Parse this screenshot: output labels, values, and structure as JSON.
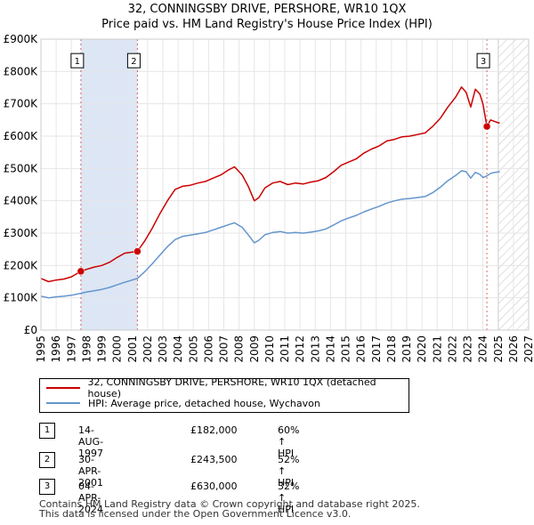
{
  "title_line1": "32, CONNINGSBY DRIVE, PERSHORE, WR10 1QX",
  "title_line2": "Price paid vs. HM Land Registry's House Price Index (HPI)",
  "chart_data": {
    "type": "line",
    "xlim": [
      1995,
      2027
    ],
    "ylim": [
      0,
      900000
    ],
    "x_ticks": [
      "1995",
      "1996",
      "1997",
      "1998",
      "1999",
      "2000",
      "2001",
      "2002",
      "2003",
      "2004",
      "2005",
      "2006",
      "2007",
      "2008",
      "2009",
      "2010",
      "2011",
      "2012",
      "2013",
      "2014",
      "2015",
      "2016",
      "2017",
      "2018",
      "2019",
      "2020",
      "2021",
      "2022",
      "2023",
      "2024",
      "2025",
      "2026",
      "2027"
    ],
    "y_ticks": [
      {
        "value": 0,
        "label": "£0"
      },
      {
        "value": 100000,
        "label": "£100K"
      },
      {
        "value": 200000,
        "label": "£200K"
      },
      {
        "value": 300000,
        "label": "£300K"
      },
      {
        "value": 400000,
        "label": "£400K"
      },
      {
        "value": 500000,
        "label": "£500K"
      },
      {
        "value": 600000,
        "label": "£600K"
      },
      {
        "value": 700000,
        "label": "£700K"
      },
      {
        "value": 800000,
        "label": "£800K"
      },
      {
        "value": 900000,
        "label": "£900K"
      }
    ],
    "shaded_periods": [
      [
        1997.62,
        2001.33
      ]
    ],
    "forecast_start": 2025.0,
    "series": [
      {
        "name": "32, CONNINGSBY DRIVE, PERSHORE, WR10 1QX (detached house)",
        "color": "#cc0000",
        "points": [
          [
            1995.0,
            160000
          ],
          [
            1995.5,
            150000
          ],
          [
            1996.0,
            155000
          ],
          [
            1996.5,
            158000
          ],
          [
            1997.0,
            165000
          ],
          [
            1997.62,
            182000
          ],
          [
            1998.0,
            188000
          ],
          [
            1998.5,
            195000
          ],
          [
            1999.0,
            200000
          ],
          [
            1999.5,
            210000
          ],
          [
            2000.0,
            225000
          ],
          [
            2000.5,
            238000
          ],
          [
            2001.33,
            243500
          ],
          [
            2001.8,
            275000
          ],
          [
            2002.3,
            315000
          ],
          [
            2002.8,
            360000
          ],
          [
            2003.3,
            400000
          ],
          [
            2003.8,
            435000
          ],
          [
            2004.3,
            445000
          ],
          [
            2004.8,
            448000
          ],
          [
            2005.3,
            455000
          ],
          [
            2005.8,
            460000
          ],
          [
            2006.3,
            470000
          ],
          [
            2006.8,
            480000
          ],
          [
            2007.3,
            495000
          ],
          [
            2007.7,
            505000
          ],
          [
            2008.2,
            480000
          ],
          [
            2008.6,
            445000
          ],
          [
            2009.0,
            400000
          ],
          [
            2009.3,
            410000
          ],
          [
            2009.7,
            440000
          ],
          [
            2010.2,
            455000
          ],
          [
            2010.7,
            460000
          ],
          [
            2011.2,
            450000
          ],
          [
            2011.7,
            455000
          ],
          [
            2012.2,
            452000
          ],
          [
            2012.7,
            458000
          ],
          [
            2013.2,
            462000
          ],
          [
            2013.7,
            472000
          ],
          [
            2014.2,
            490000
          ],
          [
            2014.7,
            510000
          ],
          [
            2015.2,
            520000
          ],
          [
            2015.7,
            530000
          ],
          [
            2016.2,
            548000
          ],
          [
            2016.7,
            560000
          ],
          [
            2017.2,
            570000
          ],
          [
            2017.7,
            585000
          ],
          [
            2018.2,
            590000
          ],
          [
            2018.7,
            598000
          ],
          [
            2019.2,
            600000
          ],
          [
            2019.7,
            605000
          ],
          [
            2020.2,
            610000
          ],
          [
            2020.7,
            630000
          ],
          [
            2021.2,
            655000
          ],
          [
            2021.7,
            690000
          ],
          [
            2022.2,
            720000
          ],
          [
            2022.6,
            752000
          ],
          [
            2022.9,
            735000
          ],
          [
            2023.2,
            690000
          ],
          [
            2023.5,
            745000
          ],
          [
            2023.8,
            730000
          ],
          [
            2024.0,
            700000
          ],
          [
            2024.26,
            630000
          ],
          [
            2024.5,
            650000
          ],
          [
            2024.8,
            645000
          ],
          [
            2025.1,
            640000
          ]
        ]
      },
      {
        "name": "HPI: Average price, detached house, Wychavon",
        "color": "#6495cd",
        "points": [
          [
            1995.0,
            105000
          ],
          [
            1995.5,
            100000
          ],
          [
            1996.0,
            103000
          ],
          [
            1996.5,
            105000
          ],
          [
            1997.0,
            108000
          ],
          [
            1997.62,
            114000
          ],
          [
            1998.0,
            118000
          ],
          [
            1998.5,
            122000
          ],
          [
            1999.0,
            126000
          ],
          [
            1999.5,
            132000
          ],
          [
            2000.0,
            140000
          ],
          [
            2000.5,
            148000
          ],
          [
            2001.33,
            160000
          ],
          [
            2001.8,
            180000
          ],
          [
            2002.3,
            205000
          ],
          [
            2002.8,
            232000
          ],
          [
            2003.3,
            258000
          ],
          [
            2003.8,
            280000
          ],
          [
            2004.3,
            290000
          ],
          [
            2004.8,
            294000
          ],
          [
            2005.3,
            298000
          ],
          [
            2005.8,
            302000
          ],
          [
            2006.3,
            310000
          ],
          [
            2006.8,
            318000
          ],
          [
            2007.3,
            326000
          ],
          [
            2007.7,
            332000
          ],
          [
            2008.2,
            318000
          ],
          [
            2008.6,
            295000
          ],
          [
            2009.0,
            270000
          ],
          [
            2009.3,
            278000
          ],
          [
            2009.7,
            295000
          ],
          [
            2010.2,
            302000
          ],
          [
            2010.7,
            305000
          ],
          [
            2011.2,
            300000
          ],
          [
            2011.7,
            302000
          ],
          [
            2012.2,
            300000
          ],
          [
            2012.7,
            303000
          ],
          [
            2013.2,
            307000
          ],
          [
            2013.7,
            313000
          ],
          [
            2014.2,
            325000
          ],
          [
            2014.7,
            338000
          ],
          [
            2015.2,
            347000
          ],
          [
            2015.7,
            355000
          ],
          [
            2016.2,
            366000
          ],
          [
            2016.7,
            375000
          ],
          [
            2017.2,
            383000
          ],
          [
            2017.7,
            393000
          ],
          [
            2018.2,
            400000
          ],
          [
            2018.7,
            405000
          ],
          [
            2019.2,
            407000
          ],
          [
            2019.7,
            410000
          ],
          [
            2020.2,
            413000
          ],
          [
            2020.7,
            425000
          ],
          [
            2021.2,
            442000
          ],
          [
            2021.7,
            462000
          ],
          [
            2022.2,
            478000
          ],
          [
            2022.6,
            493000
          ],
          [
            2022.9,
            490000
          ],
          [
            2023.2,
            470000
          ],
          [
            2023.5,
            488000
          ],
          [
            2023.8,
            482000
          ],
          [
            2024.0,
            472000
          ],
          [
            2024.26,
            477000
          ],
          [
            2024.5,
            485000
          ],
          [
            2024.8,
            488000
          ],
          [
            2025.1,
            490000
          ]
        ]
      }
    ],
    "sale_markers": [
      {
        "label": "1",
        "x": 1997.62,
        "value": 182000
      },
      {
        "label": "2",
        "x": 2001.33,
        "value": 243500
      },
      {
        "label": "3",
        "x": 2024.26,
        "value": 630000
      }
    ],
    "vline_color": "#cc0000",
    "shade_color": "#dce6f5"
  },
  "legend": {
    "items": [
      {
        "label": "32, CONNINGSBY DRIVE, PERSHORE, WR10 1QX (detached house)",
        "color": "#cc0000"
      },
      {
        "label": "HPI: Average price, detached house, Wychavon",
        "color": "#6495cd"
      }
    ]
  },
  "transactions": [
    {
      "num": "1",
      "date": "14-AUG-1997",
      "price": "£182,000",
      "hpi": "60% ↑ HPI"
    },
    {
      "num": "2",
      "date": "30-APR-2001",
      "price": "£243,500",
      "hpi": "52% ↑ HPI"
    },
    {
      "num": "3",
      "date": "04-APR-2024",
      "price": "£630,000",
      "hpi": "32% ↑ HPI"
    }
  ],
  "footer": {
    "line1": "Contains HM Land Registry data © Crown copyright and database right 2025.",
    "line2": "This data is licensed under the Open Government Licence v3.0."
  }
}
